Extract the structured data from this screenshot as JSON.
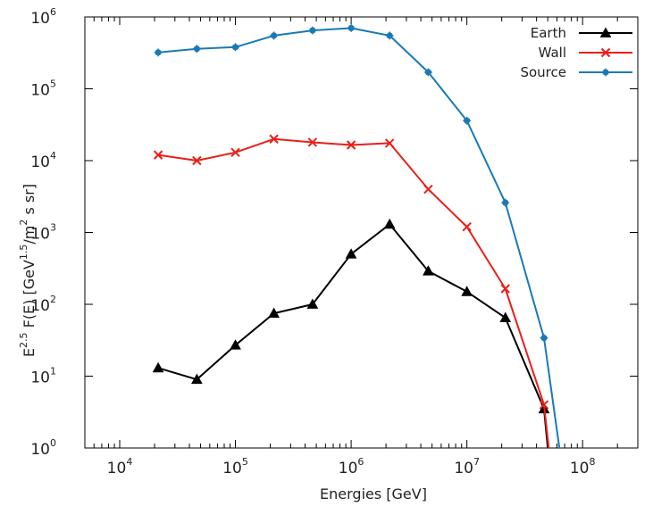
{
  "chart_data": {
    "type": "line",
    "xlabel": "Energies [GeV]",
    "ylabel": {
      "parts": [
        "E",
        "2.5",
        " F(E) [GeV",
        "1.5",
        "/m",
        "2",
        "  s sr]"
      ]
    },
    "x_scale": "log",
    "y_scale": "log",
    "xlim": [
      5000,
      300000000
    ],
    "ylim": [
      1,
      1000000
    ],
    "x_ticks": [
      {
        "value": 10000,
        "base": "10",
        "exp": "4"
      },
      {
        "value": 100000,
        "base": "10",
        "exp": "5"
      },
      {
        "value": 1000000,
        "base": "10",
        "exp": "6"
      },
      {
        "value": 10000000,
        "base": "10",
        "exp": "7"
      },
      {
        "value": 100000000,
        "base": "10",
        "exp": "8"
      }
    ],
    "y_ticks": [
      {
        "value": 1,
        "base": "10",
        "exp": "0"
      },
      {
        "value": 10,
        "base": "10",
        "exp": "1"
      },
      {
        "value": 100,
        "base": "10",
        "exp": "2"
      },
      {
        "value": 1000,
        "base": "10",
        "exp": "3"
      },
      {
        "value": 10000,
        "base": "10",
        "exp": "4"
      },
      {
        "value": 100000,
        "base": "10",
        "exp": "5"
      },
      {
        "value": 1000000,
        "base": "10",
        "exp": "6"
      }
    ],
    "grid": false,
    "legend_position": "top-right",
    "series": [
      {
        "name": "Earth",
        "color": "#000000",
        "marker": "triangle",
        "x": [
          21500,
          46400,
          100000,
          215000,
          464000,
          1000000,
          2150000,
          4640000,
          10000000,
          21500000,
          46400000,
          50000000
        ],
        "y": [
          13,
          9,
          27,
          75,
          100,
          500,
          1300,
          290,
          150,
          65,
          3.5,
          1
        ]
      },
      {
        "name": "Wall",
        "color": "#e8201a",
        "marker": "x",
        "x": [
          21500,
          46400,
          100000,
          215000,
          464000,
          1000000,
          2150000,
          4640000,
          10000000,
          21500000,
          46400000,
          51000000
        ],
        "y": [
          12000,
          10000,
          13000,
          20000,
          18000,
          16500,
          17500,
          4000,
          1200,
          165,
          4,
          1
        ]
      },
      {
        "name": "Source",
        "color": "#1a7ab5",
        "marker": "dot",
        "x": [
          21500,
          46400,
          100000,
          215000,
          464000,
          1000000,
          2150000,
          4640000,
          10000000,
          21500000,
          46400000,
          63000000
        ],
        "y": [
          320000,
          360000,
          380000,
          550000,
          650000,
          700000,
          550000,
          170000,
          36000,
          2600,
          34,
          1
        ]
      }
    ]
  }
}
